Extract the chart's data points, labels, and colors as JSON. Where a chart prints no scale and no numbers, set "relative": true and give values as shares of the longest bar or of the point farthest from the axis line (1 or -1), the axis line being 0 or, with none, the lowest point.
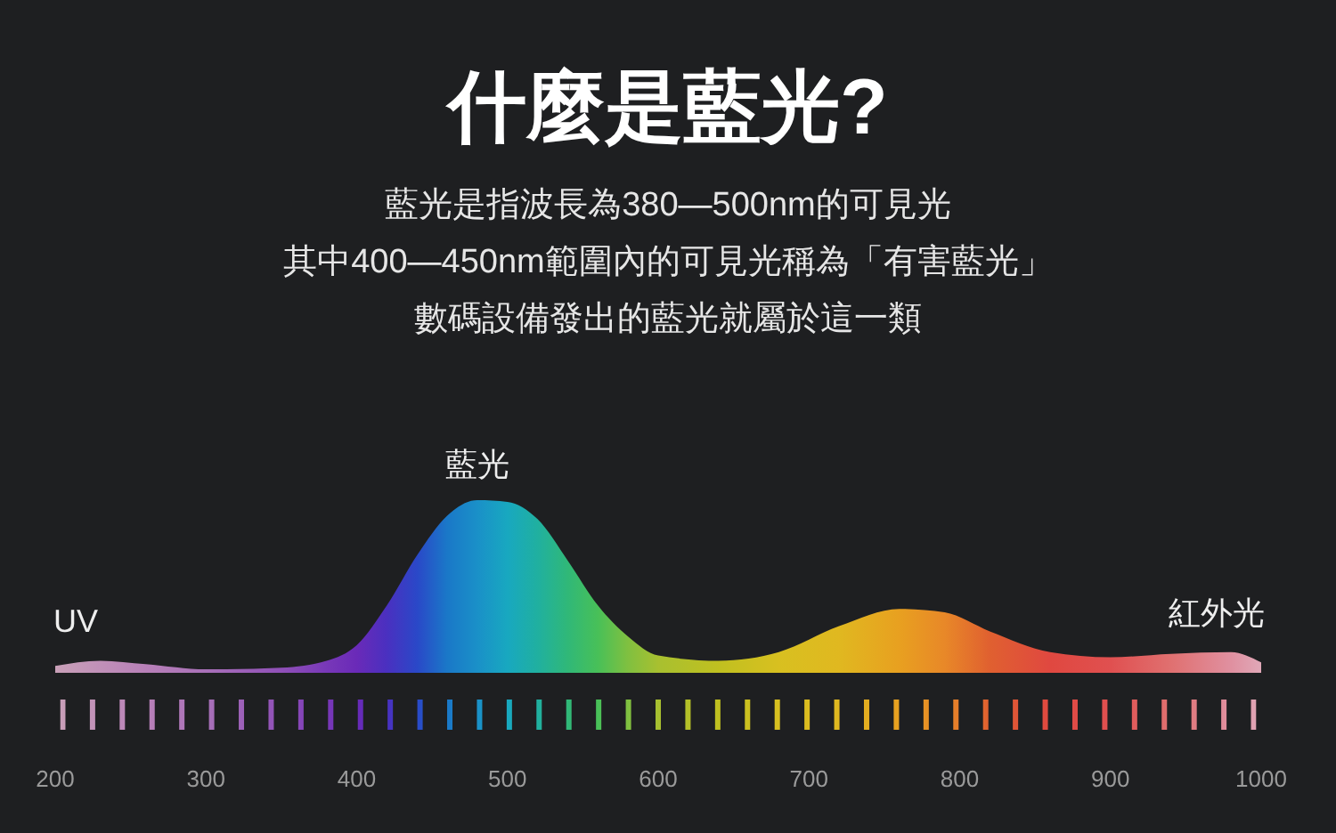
{
  "chart_data": {
    "type": "area",
    "title": "什麼是藍光?",
    "subtitle": "藍光是指波長為380—500nm的可見光",
    "relative": true,
    "x": [
      200,
      230,
      260,
      300,
      350,
      380,
      400,
      420,
      440,
      460,
      480,
      500,
      520,
      540,
      560,
      580,
      600,
      640,
      680,
      720,
      760,
      790,
      820,
      860,
      900,
      940,
      980,
      1000
    ],
    "values": [
      0.04,
      0.07,
      0.05,
      0.02,
      0.03,
      0.07,
      0.16,
      0.39,
      0.68,
      0.91,
      1.0,
      0.99,
      0.89,
      0.65,
      0.39,
      0.21,
      0.1,
      0.07,
      0.12,
      0.27,
      0.37,
      0.35,
      0.24,
      0.12,
      0.09,
      0.11,
      0.12,
      0.06
    ],
    "colors": [
      "#c9a0b8",
      "#c090b8",
      "#b880b8",
      "#a870b8",
      "#9050b8",
      "#7838b8",
      "#6a2ab8",
      "#4a30c0",
      "#2a48c8",
      "#1a78c8",
      "#1a90c8",
      "#18a8c0",
      "#20b0a0",
      "#30b878",
      "#48c058",
      "#80c040",
      "#a8c030",
      "#c0c020",
      "#d8c020",
      "#e0b820",
      "#e8a020",
      "#e88828",
      "#e06030",
      "#e04840",
      "#e05050",
      "#e07070",
      "#e090a0",
      "#e0a8b8"
    ],
    "xlim": [
      200,
      1000
    ],
    "xticks": [
      200,
      300,
      400,
      500,
      600,
      700,
      800,
      900,
      1000
    ],
    "annotations": [
      "其中400—450nm範圍內的可見光稱為「有害藍光」",
      "數碼設備發出的藍光就屬於這一類",
      {
        "text": "藍光",
        "x": 480,
        "y": 1.0
      },
      {
        "text": "UV",
        "x": 215,
        "y": 0.07
      },
      {
        "text": "紅外光",
        "x": 960,
        "y": 0.12
      }
    ]
  }
}
